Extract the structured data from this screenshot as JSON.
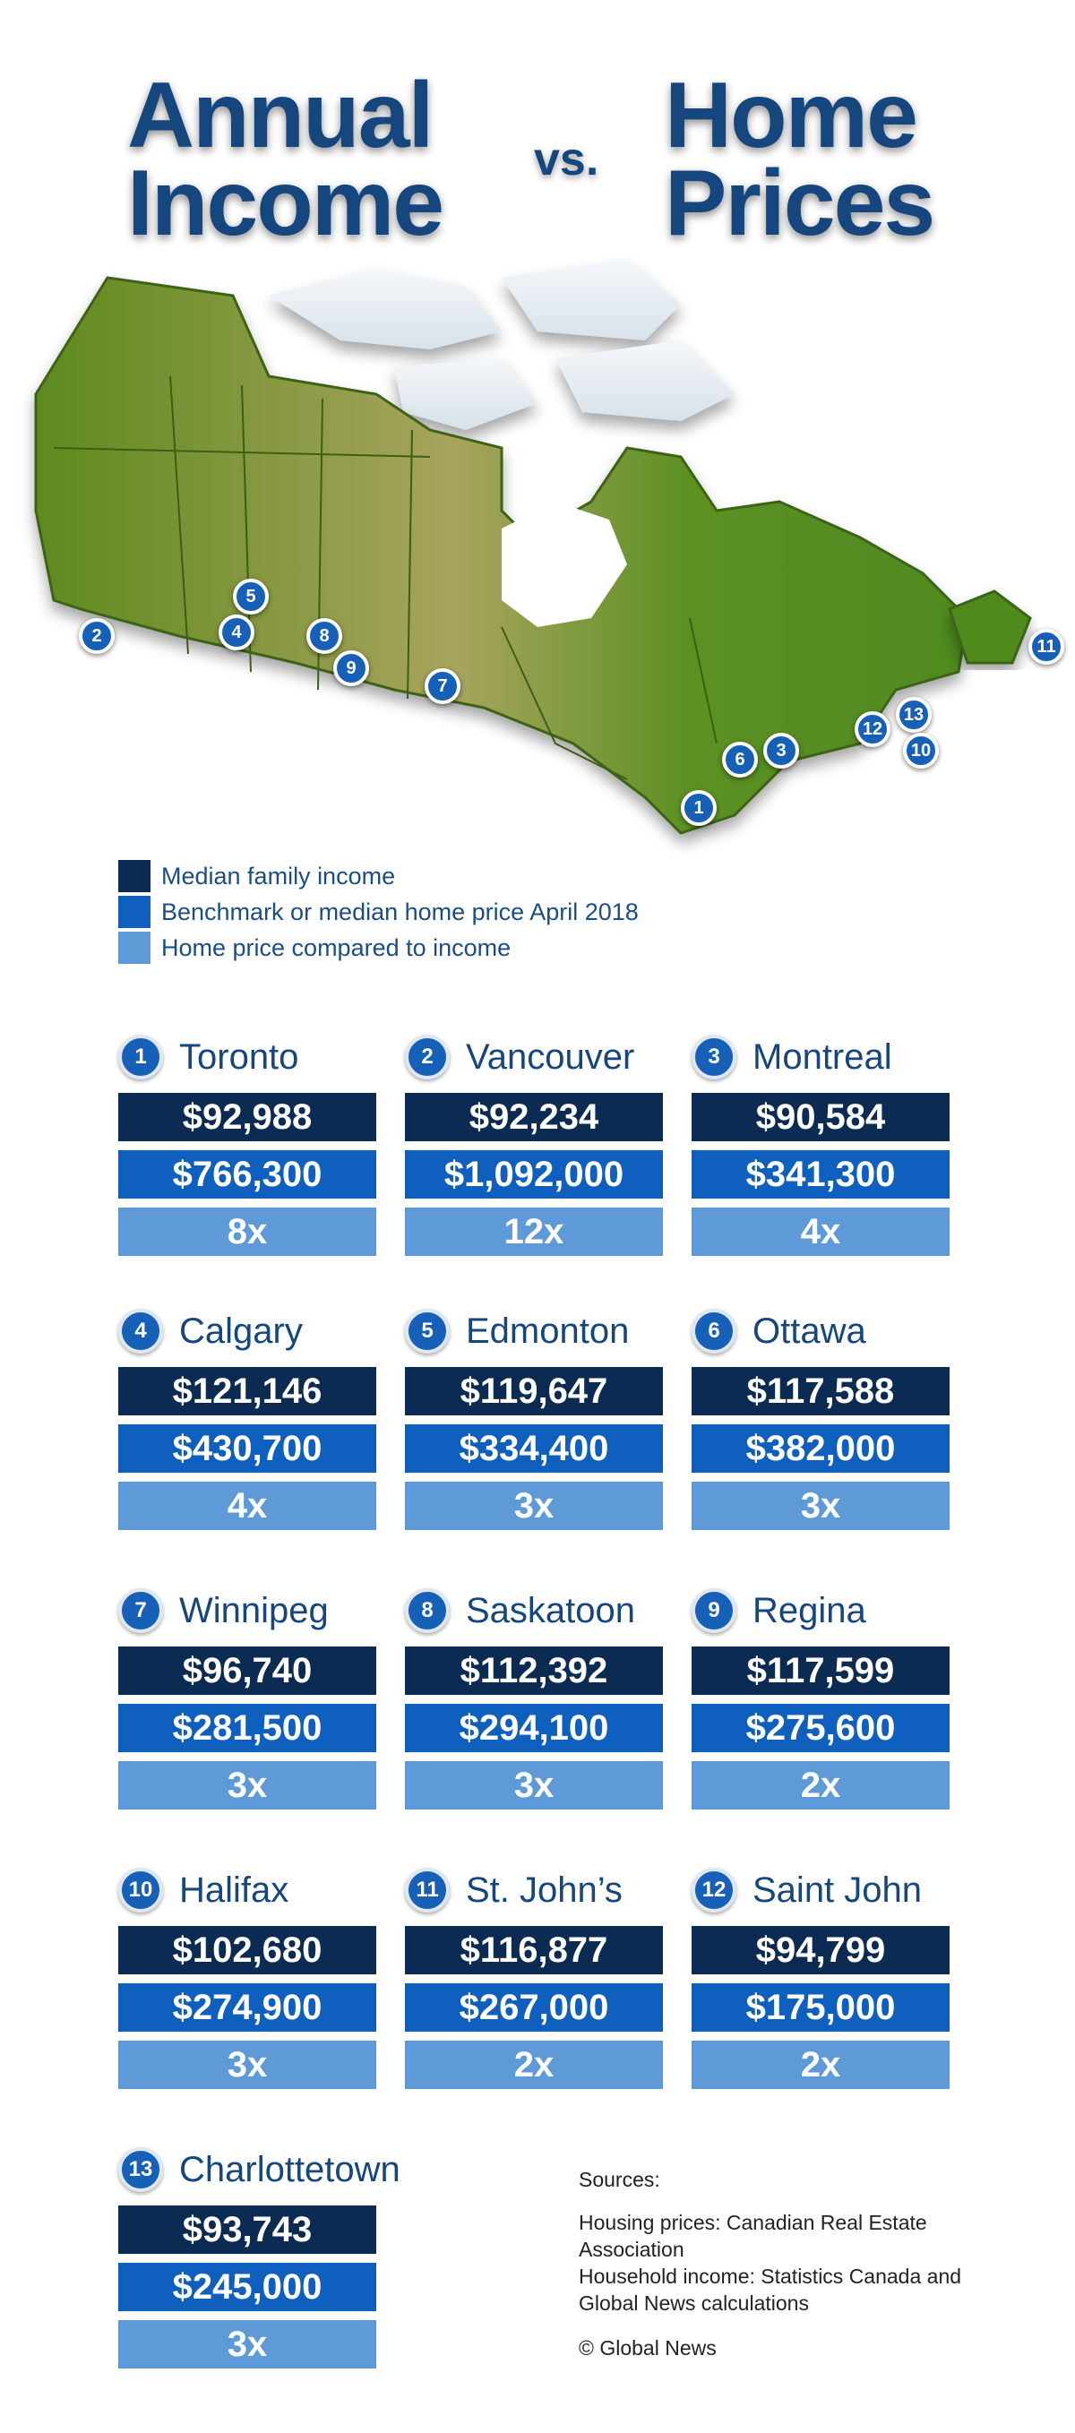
{
  "title": {
    "left_line1": "Annual",
    "left_line2": "Income",
    "vs": "vs.",
    "right_line1": "Home",
    "right_line2": "Prices"
  },
  "legend": [
    {
      "label": "Median family income",
      "color": "#0c2b52"
    },
    {
      "label": "Benchmark or median home price April 2018",
      "color": "#0f5fbf"
    },
    {
      "label": "Home price compared to income",
      "color": "#5f9ad8"
    }
  ],
  "map_markers": [
    "1",
    "2",
    "3",
    "4",
    "5",
    "6",
    "7",
    "8",
    "9",
    "10",
    "11",
    "12",
    "13"
  ],
  "cities": [
    {
      "num": "1",
      "name": "Toronto",
      "income": "$92,988",
      "price": "$766,300",
      "ratio": "8x"
    },
    {
      "num": "2",
      "name": "Vancouver",
      "income": "$92,234",
      "price": "$1,092,000",
      "ratio": "12x"
    },
    {
      "num": "3",
      "name": "Montreal",
      "income": "$90,584",
      "price": "$341,300",
      "ratio": "4x"
    },
    {
      "num": "4",
      "name": "Calgary",
      "income": "$121,146",
      "price": "$430,700",
      "ratio": "4x"
    },
    {
      "num": "5",
      "name": "Edmonton",
      "income": "$119,647",
      "price": "$334,400",
      "ratio": "3x"
    },
    {
      "num": "6",
      "name": "Ottawa",
      "income": "$117,588",
      "price": "$382,000",
      "ratio": "3x"
    },
    {
      "num": "7",
      "name": "Winnipeg",
      "income": "$96,740",
      "price": "$281,500",
      "ratio": "3x"
    },
    {
      "num": "8",
      "name": "Saskatoon",
      "income": "$112,392",
      "price": "$294,100",
      "ratio": "3x"
    },
    {
      "num": "9",
      "name": "Regina",
      "income": "$117,599",
      "price": "$275,600",
      "ratio": "2x"
    },
    {
      "num": "10",
      "name": "Halifax",
      "income": "$102,680",
      "price": "$274,900",
      "ratio": "3x"
    },
    {
      "num": "11",
      "name": "St. John’s",
      "income": "$116,877",
      "price": "$267,000",
      "ratio": "2x"
    },
    {
      "num": "12",
      "name": "Saint John",
      "income": "$94,799",
      "price": "$175,000",
      "ratio": "2x"
    },
    {
      "num": "13",
      "name": "Charlottetown",
      "income": "$93,743",
      "price": "$245,000",
      "ratio": "3x"
    }
  ],
  "sources": {
    "heading": "Sources:",
    "line1": "Housing prices: Canadian Real Estate Association",
    "line2": "Household income: Statistics Canada and Global News calculations",
    "credit": "© Global News"
  }
}
